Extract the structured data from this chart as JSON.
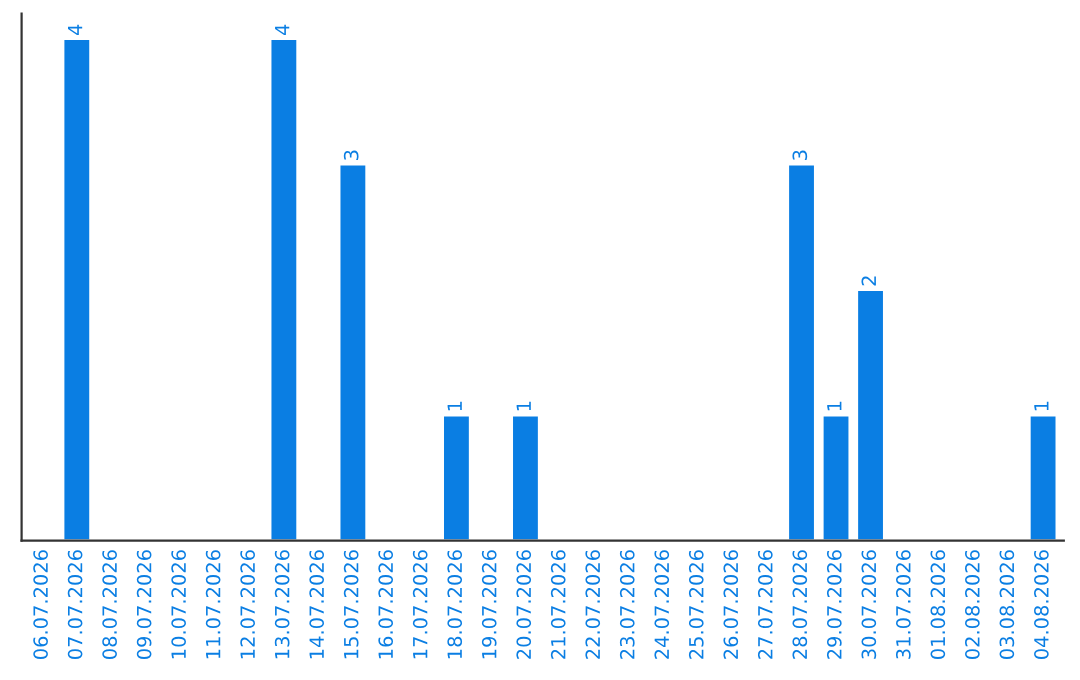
{
  "chart_data": {
    "type": "bar",
    "categories": [
      "06.07.2026",
      "07.07.2026",
      "08.07.2026",
      "09.07.2026",
      "10.07.2026",
      "11.07.2026",
      "12.07.2026",
      "13.07.2026",
      "14.07.2026",
      "15.07.2026",
      "16.07.2026",
      "17.07.2026",
      "18.07.2026",
      "19.07.2026",
      "20.07.2026",
      "21.07.2026",
      "22.07.2026",
      "23.07.2026",
      "24.07.2026",
      "25.07.2026",
      "26.07.2026",
      "27.07.2026",
      "28.07.2026",
      "29.07.2026",
      "30.07.2026",
      "31.07.2026",
      "01.08.2026",
      "02.08.2026",
      "03.08.2026",
      "04.08.2026"
    ],
    "values": [
      null,
      4,
      null,
      null,
      null,
      null,
      null,
      4,
      null,
      3,
      null,
      null,
      1,
      null,
      1,
      null,
      null,
      null,
      null,
      null,
      null,
      null,
      3,
      1,
      2,
      null,
      null,
      null,
      null,
      1
    ],
    "value_labels": [
      null,
      "4",
      null,
      null,
      null,
      null,
      null,
      "4",
      null,
      "3",
      null,
      null,
      "1",
      null,
      "1",
      null,
      null,
      null,
      null,
      null,
      null,
      null,
      "3",
      "1",
      "2",
      null,
      null,
      null,
      null,
      "1"
    ],
    "color": "#0a7ee3",
    "tick_labels": "x",
    "grid": false,
    "legend": false
  }
}
